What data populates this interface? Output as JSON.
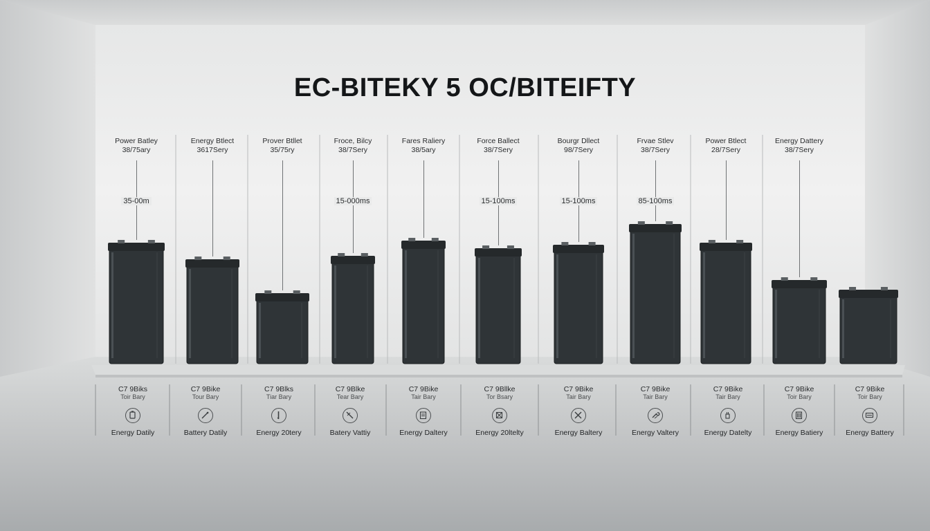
{
  "title": "EC-BITEKY 5 OC/BITEIFTY",
  "columns": [
    {
      "top1": "Power Batley",
      "top2": "38/75ary",
      "metric": "35-00m",
      "bot1": "C7 9Biks",
      "bot2": "Toir Bary",
      "icon": "battery-box-icon",
      "bot3": "Energy Datily",
      "level": 0.64
    },
    {
      "top1": "Energy Btlect",
      "top2": "3617Sery",
      "metric": "",
      "bot1": "C7 9Bike",
      "bot2": "Tour Bary",
      "icon": "slash-tool-icon",
      "bot3": "Battery Datily",
      "level": 0.55
    },
    {
      "top1": "Prover Btllet",
      "top2": "35/75ry",
      "metric": "",
      "bot1": "C7 9Blks",
      "bot2": "Tiar Bary",
      "icon": "pencil-icon",
      "bot3": "Energy 20tery",
      "level": 0.37
    },
    {
      "top1": "Froce, Bilcy",
      "top2": "38/7Sery",
      "metric": "15-000ms",
      "bot1": "C7 9Blke",
      "bot2": "Tear Bary",
      "icon": "no-entry-icon",
      "bot3": "Batery Vattiy",
      "level": 0.57
    },
    {
      "top1": "Fares Raliery",
      "top2": "38/5ary",
      "metric": "",
      "bot1": "C7 9Bike",
      "bot2": "Tair Bary",
      "icon": "clipboard-icon",
      "bot3": "Energy Daltery",
      "level": 0.65
    },
    {
      "top1": "Force Ballect",
      "top2": "38/7Sery",
      "metric": "15-100ms",
      "bot1": "C7 9Bllke",
      "bot2": "Tor Bsary",
      "icon": "crossed-box-icon",
      "bot3": "Energy 20ltelty",
      "level": 0.61
    },
    {
      "top1": "Bourgr Dllect",
      "top2": "98/7Sery",
      "metric": "15-100ms",
      "bot1": "C7 9Bike",
      "bot2": "Tair Bary",
      "icon": "crossed-tools-icon",
      "bot3": "Energy Baltery",
      "level": 0.63
    },
    {
      "top1": "Frvae Stlev",
      "top2": "38/7Sery",
      "metric": "85-100ms",
      "bot1": "C7 9Bike",
      "bot2": "Tair Bary",
      "icon": "wrench-icon",
      "bot3": "Energy Valtery",
      "level": 0.74
    },
    {
      "top1": "Power Btlect",
      "top2": "28/7Sery",
      "metric": "",
      "bot1": "C7 9Bike",
      "bot2": "Tair Bary",
      "icon": "plug-icon",
      "bot3": "Energy Datelty",
      "level": 0.64
    },
    {
      "top1": "Energy Dattery",
      "top2": "38/7Sery",
      "metric": "",
      "bot1": "C7 9Bike",
      "bot2": "Toir Bary",
      "icon": "battery-bars-icon",
      "bot3": "Energy Batiery",
      "level": 0.44
    },
    {
      "top1": "",
      "top2": "",
      "metric": "",
      "bot1": "C7 9Bike",
      "bot2": "Toir Bary",
      "icon": "battery-side-icon",
      "bot3": "Energy Battery",
      "level": 0.39
    }
  ],
  "colors": {
    "battery_body": "#2f3437",
    "battery_edge": "#1c1f21",
    "wall": "#e9eaea",
    "floor": "#c9cbcc"
  }
}
